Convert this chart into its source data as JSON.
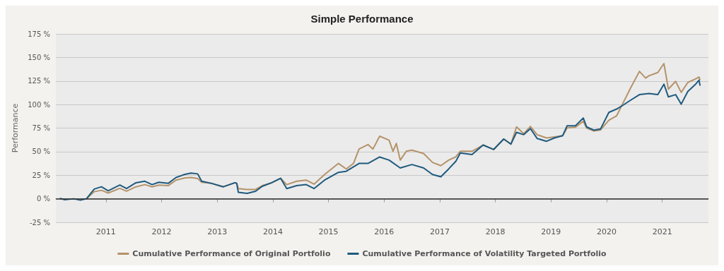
{
  "chart_data": {
    "type": "line",
    "title": "Simple Performance",
    "ylabel": "Performance",
    "xlim": [
      2010.1,
      2021.83
    ],
    "xticks": [
      2011,
      2012,
      2013,
      2014,
      2015,
      2016,
      2017,
      2018,
      2019,
      2020,
      2021
    ],
    "ylim": [
      -25,
      175
    ],
    "yticks": [
      {
        "value": -25,
        "label": "-25 %"
      },
      {
        "value": 0,
        "label": "0 %"
      },
      {
        "value": 25,
        "label": "25 %"
      },
      {
        "value": 50,
        "label": "50 %"
      },
      {
        "value": 75,
        "label": "75 %"
      },
      {
        "value": 100,
        "label": "100 %"
      },
      {
        "value": 125,
        "label": "125 %"
      },
      {
        "value": 150,
        "label": "150 %"
      },
      {
        "value": 175,
        "label": "175 %"
      }
    ],
    "grid": "y",
    "legend": "bottom",
    "marker": "none",
    "line_style": "solid",
    "ref_lines": [
      {
        "axis": "y",
        "value": 0,
        "color": "#333333"
      }
    ],
    "series": [
      {
        "name": "Cumulative Performance of Original Portfolio",
        "color": "#b5936a",
        "x": [
          2010.65,
          2010.79,
          2010.92,
          2011.04,
          2011.25,
          2011.37,
          2011.54,
          2011.7,
          2011.83,
          2011.95,
          2012.12,
          2012.26,
          2012.41,
          2012.53,
          2012.65,
          2012.72,
          2012.9,
          2013.11,
          2013.32,
          2013.35,
          2013.38,
          2013.54,
          2013.69,
          2013.81,
          2013.98,
          2014.14,
          2014.25,
          2014.43,
          2014.6,
          2014.74,
          2014.93,
          2015.18,
          2015.32,
          2015.45,
          2015.55,
          2015.71,
          2015.8,
          2015.92,
          2016.09,
          2016.16,
          2016.22,
          2016.29,
          2016.4,
          2016.5,
          2016.71,
          2016.87,
          2017.02,
          2017.16,
          2017.29,
          2017.37,
          2017.58,
          2017.78,
          2017.97,
          2018.15,
          2018.28,
          2018.38,
          2018.51,
          2018.63,
          2018.75,
          2018.92,
          2019.06,
          2019.21,
          2019.29,
          2019.44,
          2019.58,
          2019.64,
          2019.77,
          2019.89,
          2020.04,
          2020.18,
          2020.31,
          2020.43,
          2020.59,
          2020.7,
          2020.76,
          2020.92,
          2021.03,
          2021.11,
          2021.24,
          2021.34,
          2021.46,
          2021.59,
          2021.66,
          2021.68
        ],
        "values": [
          0,
          7.5,
          9,
          6.1,
          11,
          8,
          12.7,
          15,
          12.7,
          14.5,
          13.9,
          19.8,
          22,
          22.6,
          21.5,
          17.5,
          16.3,
          12.7,
          17,
          16.5,
          10.8,
          9.9,
          9.9,
          13.9,
          17,
          21.7,
          15,
          18.6,
          19.8,
          15.5,
          25.7,
          37.5,
          31.6,
          37.5,
          52.8,
          57.5,
          52.8,
          66.4,
          62.2,
          50.4,
          58.7,
          41,
          50.4,
          51.6,
          48,
          38.6,
          35.1,
          41,
          44.5,
          50.4,
          50.4,
          57,
          52.3,
          63.4,
          58,
          76.3,
          69,
          76.8,
          68,
          64.5,
          65.7,
          67,
          75.1,
          76,
          82.2,
          75,
          72,
          73,
          83.4,
          88.1,
          103.4,
          117.5,
          135.2,
          128.1,
          130.5,
          134,
          143.5,
          116.4,
          124.6,
          112.9,
          123.5,
          127,
          129.3,
          125.8
        ]
      },
      {
        "name": "Cumulative Performance of Volatility Targeted Portfolio",
        "color": "#1f5a7e",
        "x": [
          2010.17,
          2010.26,
          2010.42,
          2010.54,
          2010.65,
          2010.79,
          2010.92,
          2011.04,
          2011.25,
          2011.37,
          2011.54,
          2011.7,
          2011.83,
          2011.95,
          2012.12,
          2012.26,
          2012.41,
          2012.53,
          2012.65,
          2012.72,
          2012.9,
          2013.11,
          2013.32,
          2013.35,
          2013.38,
          2013.54,
          2013.69,
          2013.81,
          2013.98,
          2014.14,
          2014.25,
          2014.43,
          2014.6,
          2014.74,
          2014.93,
          2015.18,
          2015.32,
          2015.55,
          2015.71,
          2015.92,
          2016.09,
          2016.29,
          2016.5,
          2016.71,
          2016.87,
          2017.02,
          2017.16,
          2017.29,
          2017.37,
          2017.58,
          2017.78,
          2017.97,
          2018.15,
          2018.28,
          2018.38,
          2018.51,
          2018.63,
          2018.75,
          2018.92,
          2019.06,
          2019.21,
          2019.29,
          2019.44,
          2019.58,
          2019.64,
          2019.77,
          2019.89,
          2020.04,
          2020.18,
          2020.31,
          2020.43,
          2020.59,
          2020.76,
          2020.92,
          2021.03,
          2021.11,
          2021.24,
          2021.34,
          2021.46,
          2021.59,
          2021.66,
          2021.68
        ],
        "values": [
          0.4,
          -1,
          0,
          -1.5,
          0,
          10.3,
          12.7,
          8.5,
          14.6,
          10.8,
          17,
          18.6,
          15,
          17.5,
          16.3,
          22.6,
          25.7,
          27.3,
          26.4,
          18.6,
          16.3,
          12.7,
          17,
          16.5,
          6.8,
          5.7,
          8,
          13.2,
          17,
          21.7,
          10.8,
          13.9,
          15,
          10.8,
          19.8,
          28,
          29.2,
          37.5,
          37.5,
          44.3,
          41,
          32.7,
          36.3,
          32.7,
          25.7,
          23.3,
          31.6,
          39.8,
          48.6,
          46.9,
          57,
          52.3,
          63.4,
          58,
          70.5,
          68,
          74.4,
          64,
          61,
          64.5,
          67,
          77.5,
          77.5,
          85.7,
          76.3,
          72.8,
          74,
          91.7,
          95.2,
          99.9,
          104.6,
          110.5,
          111.7,
          110.5,
          121.6,
          108.1,
          110.5,
          100.4,
          114,
          121,
          125.8,
          120
        ]
      }
    ]
  }
}
